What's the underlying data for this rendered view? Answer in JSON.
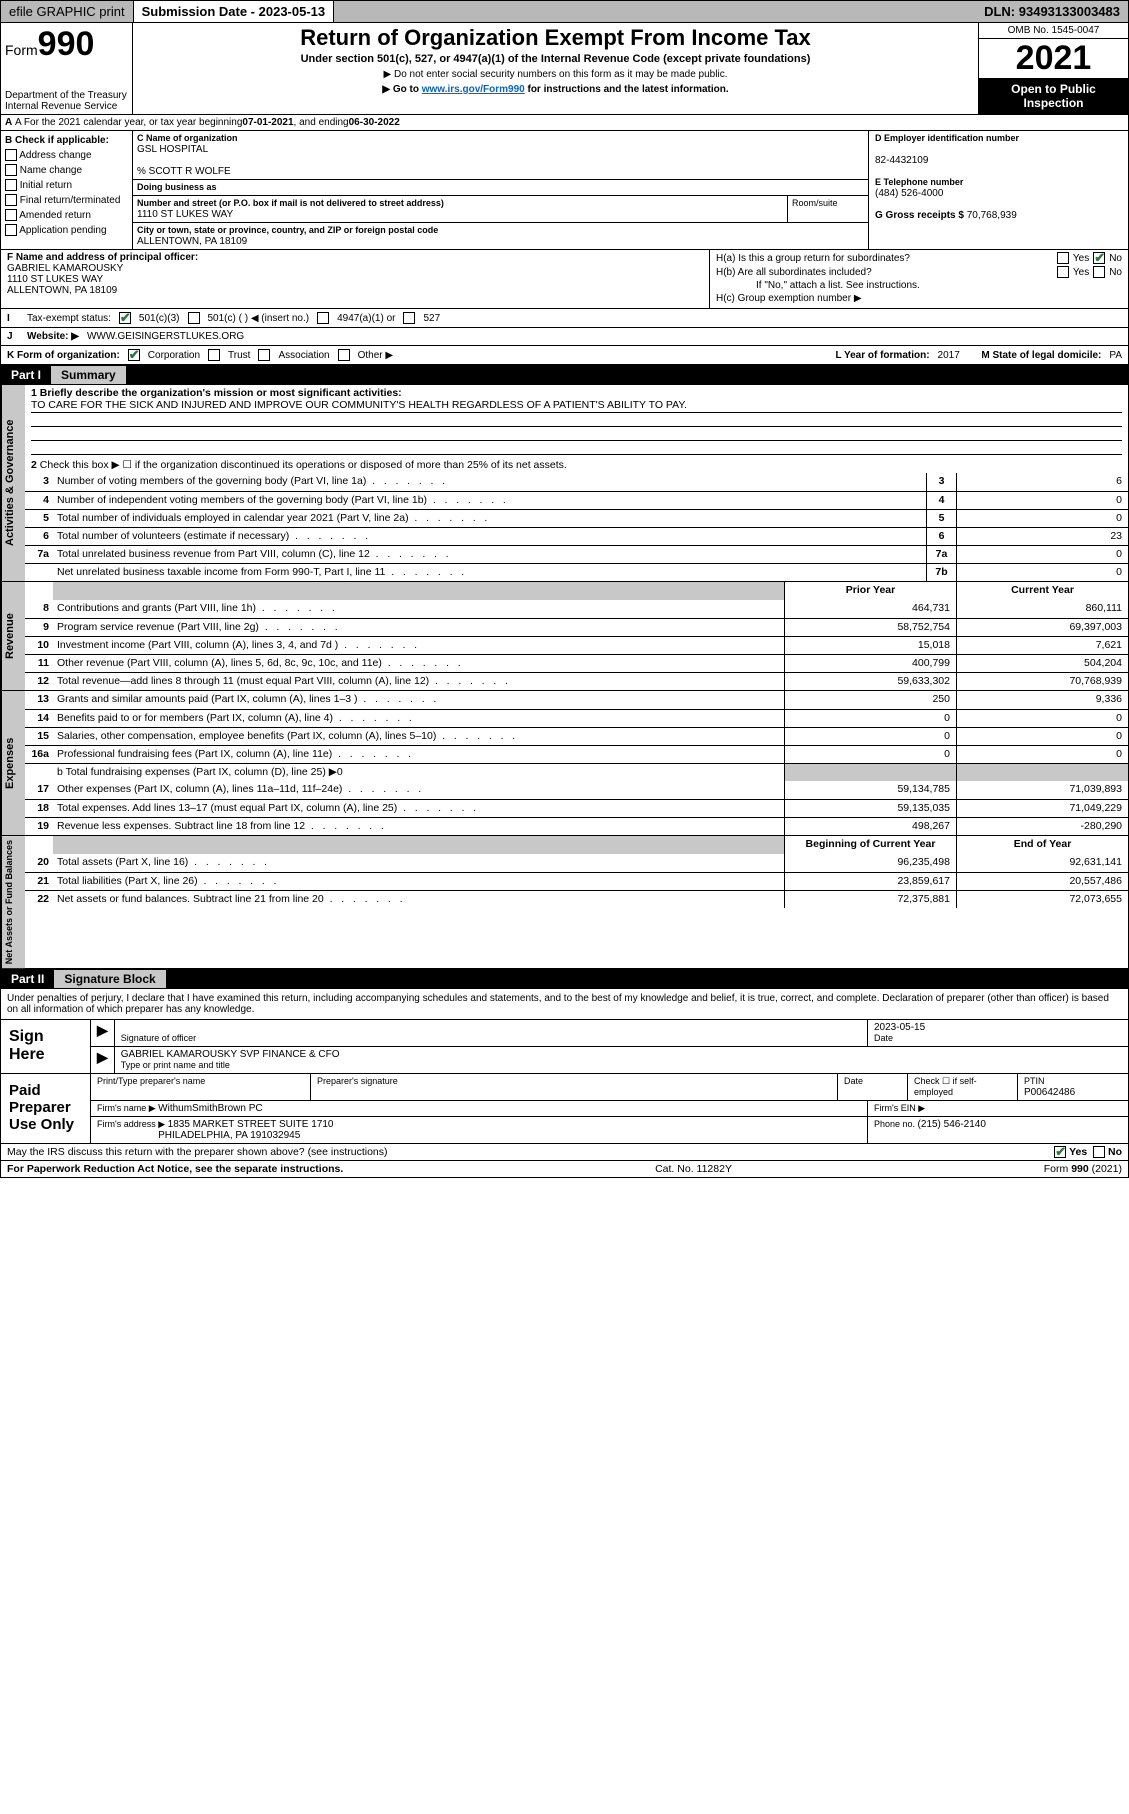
{
  "topbar": {
    "efile_label": "efile GRAPHIC print",
    "subdate_label": "Submission Date - ",
    "subdate": "2023-05-13",
    "dln_label": "DLN: ",
    "dln": "93493133003483"
  },
  "header": {
    "form_label": "Form",
    "form_no": "990",
    "dept": "Department of the Treasury\nInternal Revenue Service",
    "title": "Return of Organization Exempt From Income Tax",
    "sub": "Under section 501(c), 527, or 4947(a)(1) of the Internal Revenue Code (except private foundations)",
    "note1": "▶ Do not enter social security numbers on this form as it may be made public.",
    "note2_pre": "▶ Go to ",
    "note2_link": "www.irs.gov/Form990",
    "note2_post": " for instructions and the latest information.",
    "omb": "OMB No. 1545-0047",
    "year": "2021",
    "open": "Open to Public Inspection"
  },
  "rowA": {
    "text_pre": "A For the 2021 calendar year, or tax year beginning ",
    "begin": "07-01-2021",
    "mid": " , and ending ",
    "end": "06-30-2022"
  },
  "B": {
    "label": "B Check if applicable:",
    "opts": [
      "Address change",
      "Name change",
      "Initial return",
      "Final return/terminated",
      "Amended return",
      "Application pending"
    ]
  },
  "C": {
    "name_lbl": "C Name of organization",
    "name": "GSL HOSPITAL",
    "care_lbl": "% SCOTT R WOLFE",
    "dba_lbl": "Doing business as",
    "addr_lbl": "Number and street (or P.O. box if mail is not delivered to street address)",
    "addr": "1110 ST LUKES WAY",
    "room_lbl": "Room/suite",
    "city_lbl": "City or town, state or province, country, and ZIP or foreign postal code",
    "city": "ALLENTOWN, PA  18109"
  },
  "D": {
    "lbl": "D Employer identification number",
    "val": "82-4432109"
  },
  "E": {
    "lbl": "E Telephone number",
    "val": "(484) 526-4000"
  },
  "G": {
    "lbl": "G Gross receipts $ ",
    "val": "70,768,939"
  },
  "F": {
    "lbl": "F  Name and address of principal officer:",
    "name": "GABRIEL KAMAROUSKY",
    "addr1": "1110 ST LUKES WAY",
    "addr2": "ALLENTOWN, PA  18109"
  },
  "H": {
    "a": "H(a)  Is this a group return for subordinates?",
    "b": "H(b)  Are all subordinates included?",
    "bnote": "If \"No,\" attach a list. See instructions.",
    "c": "H(c)  Group exemption number ▶",
    "yes": "Yes",
    "no": "No"
  },
  "I": {
    "lbl": "Tax-exempt status:",
    "o1": "501(c)(3)",
    "o2": "501(c) (   ) ◀ (insert no.)",
    "o3": "4947(a)(1) or",
    "o4": "527"
  },
  "J": {
    "lbl": "Website: ▶",
    "val": "WWW.GEISINGERSTLUKES.ORG"
  },
  "K": {
    "lbl": "K Form of organization:",
    "o1": "Corporation",
    "o2": "Trust",
    "o3": "Association",
    "o4": "Other ▶"
  },
  "L": {
    "lbl": "L Year of formation: ",
    "val": "2017"
  },
  "M": {
    "lbl": "M State of legal domicile: ",
    "val": "PA"
  },
  "partI": {
    "num": "Part I",
    "title": "Summary"
  },
  "mission": {
    "l1lbl": "1   Briefly describe the organization's mission or most significant activities:",
    "l1": "TO CARE FOR THE SICK AND INJURED AND IMPROVE OUR COMMUNITY'S HEALTH REGARDLESS OF A PATIENT'S ABILITY TO PAY."
  },
  "gov": {
    "tab": "Activities & Governance",
    "l2": "Check this box ▶ ☐  if the organization discontinued its operations or disposed of more than 25% of its net assets.",
    "rows": [
      {
        "n": "3",
        "t": "Number of voting members of the governing body (Part VI, line 1a)",
        "b": "3",
        "v": "6"
      },
      {
        "n": "4",
        "t": "Number of independent voting members of the governing body (Part VI, line 1b)",
        "b": "4",
        "v": "0"
      },
      {
        "n": "5",
        "t": "Total number of individuals employed in calendar year 2021 (Part V, line 2a)",
        "b": "5",
        "v": "0"
      },
      {
        "n": "6",
        "t": "Total number of volunteers (estimate if necessary)",
        "b": "6",
        "v": "23"
      },
      {
        "n": "7a",
        "t": "Total unrelated business revenue from Part VIII, column (C), line 12",
        "b": "7a",
        "v": "0"
      },
      {
        "n": "",
        "t": "Net unrelated business taxable income from Form 990-T, Part I, line 11",
        "b": "7b",
        "v": "0"
      }
    ]
  },
  "rev": {
    "tab": "Revenue",
    "hdr_prior": "Prior Year",
    "hdr_curr": "Current Year",
    "rows": [
      {
        "n": "8",
        "t": "Contributions and grants (Part VIII, line 1h)",
        "p": "464,731",
        "c": "860,111"
      },
      {
        "n": "9",
        "t": "Program service revenue (Part VIII, line 2g)",
        "p": "58,752,754",
        "c": "69,397,003"
      },
      {
        "n": "10",
        "t": "Investment income (Part VIII, column (A), lines 3, 4, and 7d )",
        "p": "15,018",
        "c": "7,621"
      },
      {
        "n": "11",
        "t": "Other revenue (Part VIII, column (A), lines 5, 6d, 8c, 9c, 10c, and 11e)",
        "p": "400,799",
        "c": "504,204"
      },
      {
        "n": "12",
        "t": "Total revenue—add lines 8 through 11 (must equal Part VIII, column (A), line 12)",
        "p": "59,633,302",
        "c": "70,768,939"
      }
    ]
  },
  "exp": {
    "tab": "Expenses",
    "rows": [
      {
        "n": "13",
        "t": "Grants and similar amounts paid (Part IX, column (A), lines 1–3 )",
        "p": "250",
        "c": "9,336"
      },
      {
        "n": "14",
        "t": "Benefits paid to or for members (Part IX, column (A), line 4)",
        "p": "0",
        "c": "0"
      },
      {
        "n": "15",
        "t": "Salaries, other compensation, employee benefits (Part IX, column (A), lines 5–10)",
        "p": "0",
        "c": "0"
      },
      {
        "n": "16a",
        "t": "Professional fundraising fees (Part IX, column (A), line 11e)",
        "p": "0",
        "c": "0"
      }
    ],
    "l16b": "b   Total fundraising expenses (Part IX, column (D), line 25) ▶0",
    "rows2": [
      {
        "n": "17",
        "t": "Other expenses (Part IX, column (A), lines 11a–11d, 11f–24e)",
        "p": "59,134,785",
        "c": "71,039,893"
      },
      {
        "n": "18",
        "t": "Total expenses. Add lines 13–17 (must equal Part IX, column (A), line 25)",
        "p": "59,135,035",
        "c": "71,049,229"
      },
      {
        "n": "19",
        "t": "Revenue less expenses. Subtract line 18 from line 12",
        "p": "498,267",
        "c": "-280,290"
      }
    ]
  },
  "net": {
    "tab": "Net Assets or Fund Balances",
    "hdr_begin": "Beginning of Current Year",
    "hdr_end": "End of Year",
    "rows": [
      {
        "n": "20",
        "t": "Total assets (Part X, line 16)",
        "p": "96,235,498",
        "c": "92,631,141"
      },
      {
        "n": "21",
        "t": "Total liabilities (Part X, line 26)",
        "p": "23,859,617",
        "c": "20,557,486"
      },
      {
        "n": "22",
        "t": "Net assets or fund balances. Subtract line 21 from line 20",
        "p": "72,375,881",
        "c": "72,073,655"
      }
    ]
  },
  "partII": {
    "num": "Part II",
    "title": "Signature Block"
  },
  "sig": {
    "decl": "Under penalties of perjury, I declare that I have examined this return, including accompanying schedules and statements, and to the best of my knowledge and belief, it is true, correct, and complete. Declaration of preparer (other than officer) is based on all information of which preparer has any knowledge.",
    "sign_here": "Sign Here",
    "sigoff_lbl": "Signature of officer",
    "date_lbl": "Date",
    "date": "2023-05-15",
    "name": "GABRIEL KAMAROUSKY  SVP FINANCE & CFO",
    "name_lbl": "Type or print name and title",
    "paid": "Paid Preparer Use Only",
    "p_name_lbl": "Print/Type preparer's name",
    "p_sig_lbl": "Preparer's signature",
    "p_date_lbl": "Date",
    "p_check": "Check ☐ if self-employed",
    "ptin_lbl": "PTIN",
    "ptin": "P00642486",
    "firm_lbl": "Firm's name    ▶ ",
    "firm": "WithumSmithBrown PC",
    "ein_lbl": "Firm's EIN ▶",
    "faddr_lbl": "Firm's address ▶ ",
    "faddr": "1835 MARKET STREET SUITE 1710",
    "faddr2": "PHILADELPHIA, PA  191032945",
    "phone_lbl": "Phone no. ",
    "phone": "(215) 546-2140"
  },
  "foot": {
    "q": "May the IRS discuss this return with the preparer shown above? (see instructions)",
    "yes": "Yes",
    "no": "No",
    "pra": "For Paperwork Reduction Act Notice, see the separate instructions.",
    "cat": "Cat. No. 11282Y",
    "form": "Form 990 (2021)"
  },
  "colors": {
    "grey": "#c8c8c8",
    "topgrey": "#b8b8b8",
    "link": "#0066cc",
    "check": "#2a7a3a"
  }
}
